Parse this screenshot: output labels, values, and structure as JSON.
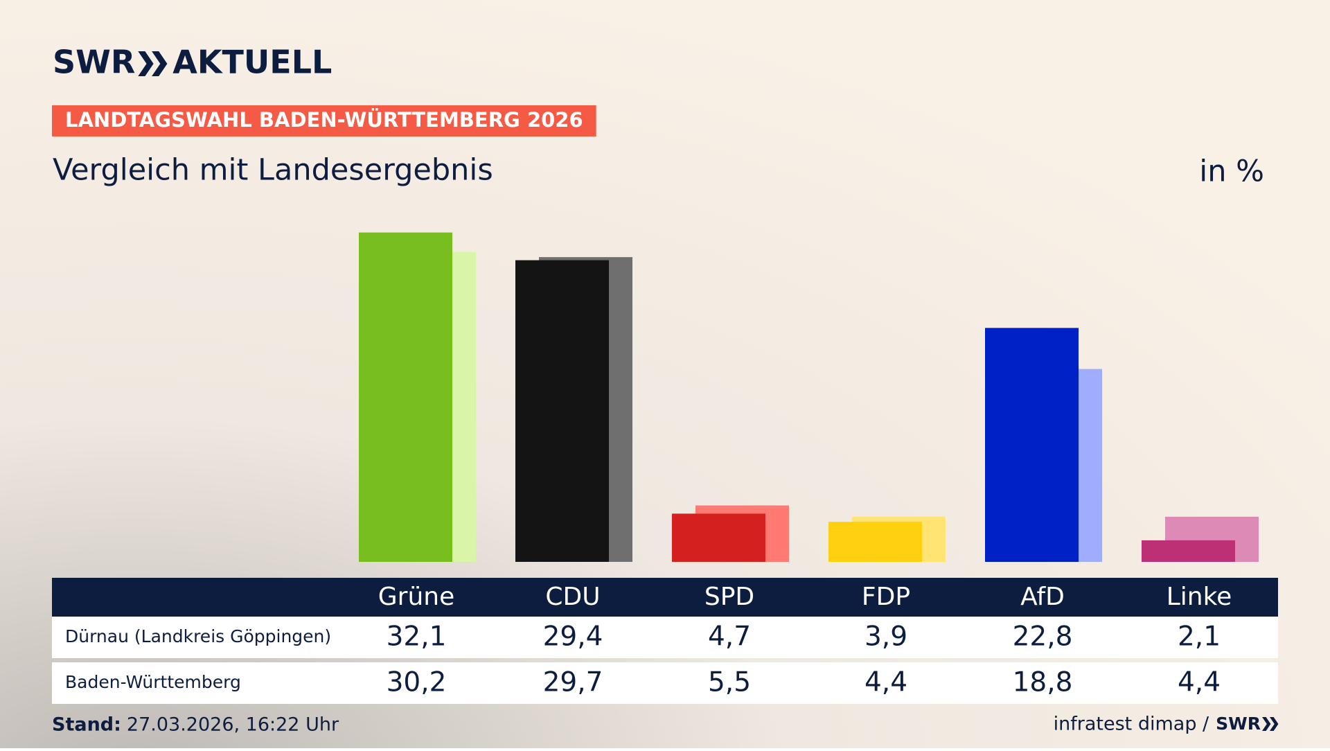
{
  "header": {
    "brand": "SWR",
    "brand_suffix": "AKTUELL",
    "kicker": "LANDTAGSWAHL BADEN-WÜRTTEMBERG 2026"
  },
  "chart_data": {
    "type": "bar",
    "title": "Vergleich mit Landesergebnis",
    "unit": "in %",
    "categories": [
      "Grüne",
      "CDU",
      "SPD",
      "FDP",
      "AfD",
      "Linke"
    ],
    "series": [
      {
        "name": "Dürnau (Landkreis Göppingen)",
        "colors": [
          "#78be1e",
          "#141414",
          "#d52020",
          "#ffd010",
          "#0021c6",
          "#be3075"
        ],
        "values": [
          32.1,
          29.4,
          4.7,
          3.9,
          22.8,
          2.1
        ],
        "value_labels": [
          "32,1",
          "29,4",
          "4,7",
          "3,9",
          "22,8",
          "2,1"
        ]
      },
      {
        "name": "Baden-Württemberg",
        "colors": [
          "#d8f5a8",
          "#6f6f6f",
          "#ff7a72",
          "#ffe373",
          "#a0adff",
          "#de8ab7"
        ],
        "values": [
          30.2,
          29.7,
          5.5,
          4.4,
          18.8,
          4.4
        ],
        "value_labels": [
          "30,2",
          "29,7",
          "5,5",
          "4,4",
          "18,8",
          "4,4"
        ]
      }
    ],
    "ylim": [
      0,
      35
    ]
  },
  "footer": {
    "stand_label": "Stand:",
    "stand": "27.03.2026, 16:22 Uhr",
    "source": "infratest dimap /",
    "source_brand": "SWR"
  }
}
